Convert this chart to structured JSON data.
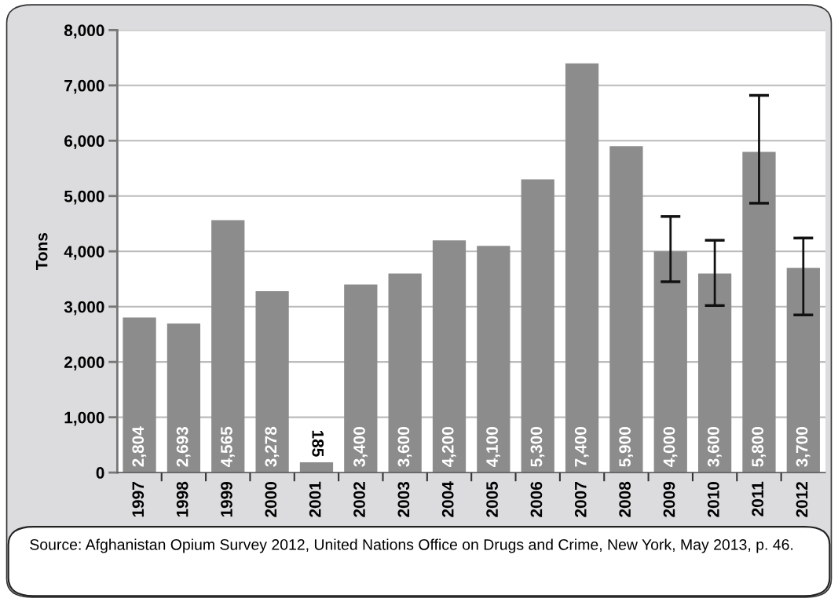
{
  "chart_data": {
    "type": "bar",
    "ylabel": "Tons",
    "categories": [
      "1997",
      "1998",
      "1999",
      "2000",
      "2001",
      "2002",
      "2003",
      "2004",
      "2005",
      "2006",
      "2007",
      "2008",
      "2009",
      "2010",
      "2011",
      "2012"
    ],
    "values": [
      2804,
      2693,
      4565,
      3278,
      185,
      3400,
      3600,
      4200,
      4100,
      5300,
      7400,
      5900,
      4000,
      3600,
      5800,
      3700
    ],
    "errors": [
      null,
      null,
      null,
      null,
      null,
      null,
      null,
      null,
      null,
      null,
      null,
      null,
      [
        3450,
        4630
      ],
      [
        3020,
        4200
      ],
      [
        4870,
        6820
      ],
      [
        2850,
        4240
      ]
    ],
    "value_labels": [
      "2,804",
      "2,693",
      "4,565",
      "3,278",
      "185",
      "3,400",
      "3,600",
      "4,200",
      "4,100",
      "5,300",
      "7,400",
      "5,900",
      "4,000",
      "3,600",
      "5,800",
      "3,700"
    ],
    "color": "#8c8c8c",
    "grid": "y",
    "ylim": [
      0,
      8000
    ],
    "yticks": [
      {
        "value": 0,
        "label": "0"
      },
      {
        "value": 1000,
        "label": "1,000"
      },
      {
        "value": 2000,
        "label": "2,000"
      },
      {
        "value": 3000,
        "label": "3,000"
      },
      {
        "value": 4000,
        "label": "4,000"
      },
      {
        "value": 5000,
        "label": "5,000"
      },
      {
        "value": 6000,
        "label": "6,000"
      },
      {
        "value": 7000,
        "label": "7,000"
      },
      {
        "value": 8000,
        "label": "8,000"
      }
    ],
    "annotations": [
      "Source: Afghanistan Opium Survey 2012, United Nations Office on Drugs and Crime, New York, May 2013, p. 46."
    ]
  }
}
